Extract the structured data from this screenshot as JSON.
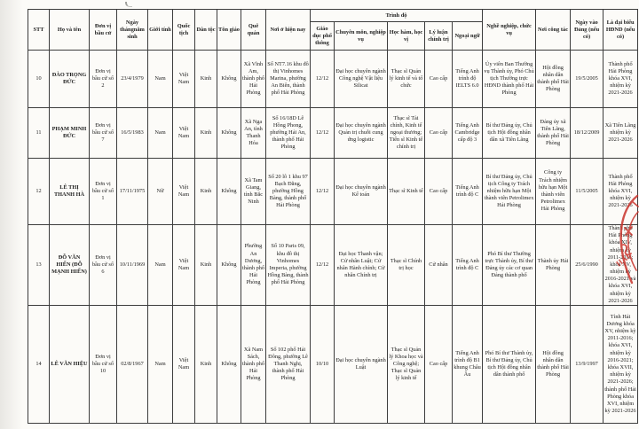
{
  "page": {
    "stamp_color": "#c9342c",
    "stamp_text_fragment": "HẢI"
  },
  "table": {
    "group_header": "Trình độ",
    "columns": [
      "STT",
      "Họ và tên",
      "Đơn vị bầu cử",
      "Ngày thángnăm sinh",
      "Giới tính",
      "Quốc tịch",
      "Dân tộc",
      "Tôn giáo",
      "Quê quán",
      "Nơi ở hiện nay",
      "Giáo dục phổ thông",
      "Chuyên môn, nghiệp vụ",
      "Học hàm, học vị",
      "Lý luận chính trị",
      "Ngoại ngữ",
      "Nghề nghiệp, chức vụ",
      "Nơi công tác",
      "Ngày vào Đảng (nếu có)",
      "Là đại biểu HĐND (nếu có)"
    ],
    "field_order": [
      "stt",
      "ho_ten",
      "don_vi_bau_cu",
      "ngay_sinh",
      "gioi_tinh",
      "quoc_tich",
      "dan_toc",
      "ton_giao",
      "que_quan",
      "noi_o_hien_nay",
      "giao_duc_pho_thong",
      "chuyen_mon_nghiep_vu",
      "hoc_ham_hoc_vi",
      "ly_luan_chinh_tri",
      "ngoai_ngu",
      "nghe_nghiep_chuc_vu",
      "noi_cong_tac",
      "ngay_vao_dang",
      "dai_bieu_hdnd"
    ],
    "rows": [
      {
        "stt": "10",
        "ho_ten": "ĐÀO TRỌNG ĐỨC",
        "don_vi_bau_cu": "Đơn vị bầu cử số 2",
        "ngay_sinh": "23/4/1979",
        "gioi_tinh": "Nam",
        "quoc_tich": "Việt Nam",
        "dan_toc": "Kinh",
        "ton_giao": "Không",
        "que_quan": "Xã Vĩnh Am, thành phố Hải Phòng",
        "noi_o_hien_nay": "Số NT7.16 khu đô thị Vinhomes Marina, phường An Biên, thành phố Hải Phòng",
        "giao_duc_pho_thong": "12/12",
        "chuyen_mon_nghiep_vu": "Đại học chuyên ngành Công nghệ Vật liệu Silicat",
        "hoc_ham_hoc_vi": "Thạc sĩ Quản lý kinh tế và tổ chức",
        "ly_luan_chinh_tri": "Cao cấp",
        "ngoai_ngu": "Tiếng Anh trình độ IELTS 6.0",
        "nghe_nghiep_chuc_vu": "Ủy viên Ban Thường vụ Thành ủy, Phó Chủ tịch Thường trực HĐND thành phố Hải Phòng",
        "noi_cong_tac": "Hội đồng nhân dân thành phố Hải Phòng",
        "ngay_vao_dang": "19/5/2005",
        "dai_bieu_hdnd": "Thành phố Hải Phòng khóa XVI, nhiệm kỳ 2021-2026"
      },
      {
        "stt": "11",
        "ho_ten": "PHẠM MINH ĐỨC",
        "don_vi_bau_cu": "Đơn vị bầu cử số 7",
        "ngay_sinh": "16/5/1983",
        "gioi_tinh": "Nam",
        "quoc_tich": "Việt Nam",
        "dan_toc": "Kinh",
        "ton_giao": "Không",
        "que_quan": "Xã Nga An, tỉnh Thanh Hóa",
        "noi_o_hien_nay": "Số 16/18D Lê Hồng Phong, phường Hải An, thành phố Hải Phòng",
        "giao_duc_pho_thong": "12/12",
        "chuyen_mon_nghiep_vu": "Đại học chuyên ngành Quản trị chuỗi cung ứng logistic",
        "hoc_ham_hoc_vi": "Thạc sĩ Tài chính, Kinh tế ngoại thương; Tiến sĩ Kinh tế chính trị",
        "ly_luan_chinh_tri": "Cao cấp",
        "ngoai_ngu": "Tiếng Anh Cambridge cấp độ 3",
        "nghe_nghiep_chuc_vu": "Bí thư Đảng ủy, Chủ tịch Hội đồng nhân dân xã Tiên Lãng",
        "noi_cong_tac": "Đảng ủy xã Tiên Lãng, thành phố Hải Phòng",
        "ngay_vao_dang": "18/12/2009",
        "dai_bieu_hdnd": "Xã Tiên Lãng nhiệm kỳ 2021-2026"
      },
      {
        "stt": "12",
        "ho_ten": "LÊ THỊ THANH HÀ",
        "don_vi_bau_cu": "Đơn vị bầu cử số 1",
        "ngay_sinh": "17/11/1975",
        "gioi_tinh": "Nữ",
        "quoc_tich": "Việt Nam",
        "dan_toc": "Kinh",
        "ton_giao": "Không",
        "que_quan": "Xã Tam Giang, tỉnh Bắc Ninh",
        "noi_o_hien_nay": "Số 20 lô 1 khu 97 Bạch Đằng, phường Hồng Bàng, thành phố Hải Phòng",
        "giao_duc_pho_thong": "12/12",
        "chuyen_mon_nghiep_vu": "Đại học chuyên ngành Kế toán",
        "hoc_ham_hoc_vi": "Thạc sĩ Kinh tế",
        "ly_luan_chinh_tri": "Cao cấp",
        "ngoai_ngu": "Tiếng Anh trình độ C",
        "nghe_nghiep_chuc_vu": "Bí thư Đảng ủy, Chủ tịch Công ty Trách nhiệm hữu hạn Một thành viên Petrolimex Hải Phòng",
        "noi_cong_tac": "Công ty Trách nhiệm hữu hạn Một thành viên Petrolimex Hải Phòng",
        "ngay_vao_dang": "11/5/2005",
        "dai_bieu_hdnd": "Thành phố Hải Phòng khóa XVI, nhiệm kỳ 2021-2026"
      },
      {
        "stt": "13",
        "ho_ten": "ĐỖ VĂN HIẾN (ĐỖ MẠNH HIẾN)",
        "don_vi_bau_cu": "Đơn vị bầu cử số 6",
        "ngay_sinh": "10/11/1969",
        "gioi_tinh": "Nam",
        "quoc_tich": "Việt Nam",
        "dan_toc": "Kinh",
        "ton_giao": "Không",
        "que_quan": "Phường An Dương, thành phố Hải Phòng",
        "noi_o_hien_nay": "Số 10 Paris 09, khu đô thị Vinhomes Imperia, phường Hồng Bàng, thành phố Hải Phòng",
        "giao_duc_pho_thong": "12/12",
        "chuyen_mon_nghiep_vu": "Đại học Thanh vận; Cử nhân Luật; Cử nhân Hành chính; Cử nhân Chính trị",
        "hoc_ham_hoc_vi": "Thạc sĩ Chính trị học",
        "ly_luan_chinh_tri": "Cử nhân",
        "ngoai_ngu": "Tiếng Anh trình độ C",
        "nghe_nghiep_chuc_vu": "Phó Bí thư Thường trực Thành ủy, Bí thư Đảng ủy các cơ quan Đảng thành phố",
        "noi_cong_tac": "Thành ủy Hải Phòng",
        "ngay_vao_dang": "25/6/1990",
        "dai_bieu_hdnd": "Thành phố Hải Phòng khóa XIV, nhiệm kỳ 2011-2016; khóa XV, nhiệm kỳ 2016-2021 và khóa XVI, nhiệm kỳ 2021-2026"
      },
      {
        "stt": "14",
        "ho_ten": "LÊ VĂN HIỆU",
        "don_vi_bau_cu": "Đơn vị bầu cử số 10",
        "ngay_sinh": "02/8/1967",
        "gioi_tinh": "Nam",
        "quoc_tich": "Việt Nam",
        "dan_toc": "Kinh",
        "ton_giao": "Không",
        "que_quan": "Xã Nam Sách, thành phố Hải Phòng",
        "noi_o_hien_nay": "Số 102 phố Hải Đông, phường Lê Thanh Nghị, thành phố Hải Phòng",
        "giao_duc_pho_thong": "10/10",
        "chuyen_mon_nghiep_vu": "Đại học chuyên ngành Luật",
        "hoc_ham_hoc_vi": "Thạc sĩ Quản lý Khoa học và Công nghệ; Thạc sĩ Quản lý kinh tế",
        "ly_luan_chinh_tri": "Cao cấp",
        "ngoai_ngu": "Tiếng Anh trình độ B1 khung Châu Âu",
        "nghe_nghiep_chuc_vu": "Phó Bí thư Thành ủy, Bí thư Đảng ủy, Chủ tịch Hội đồng nhân dân thành phố",
        "noi_cong_tac": "Hội đồng nhân dân thành phố Hải Phòng",
        "ngay_vao_dang": "13/9/1997",
        "dai_bieu_hdnd": "Tỉnh Hải Dương khóa XV, nhiệm kỳ 2011-2016; khóa XVI, nhiệm kỳ 2016-2021; khóa XVII, nhiệm kỳ 2021-2026; thành phố Hải Phòng khóa XVI, nhiệm kỳ 2021-2026"
      }
    ]
  }
}
